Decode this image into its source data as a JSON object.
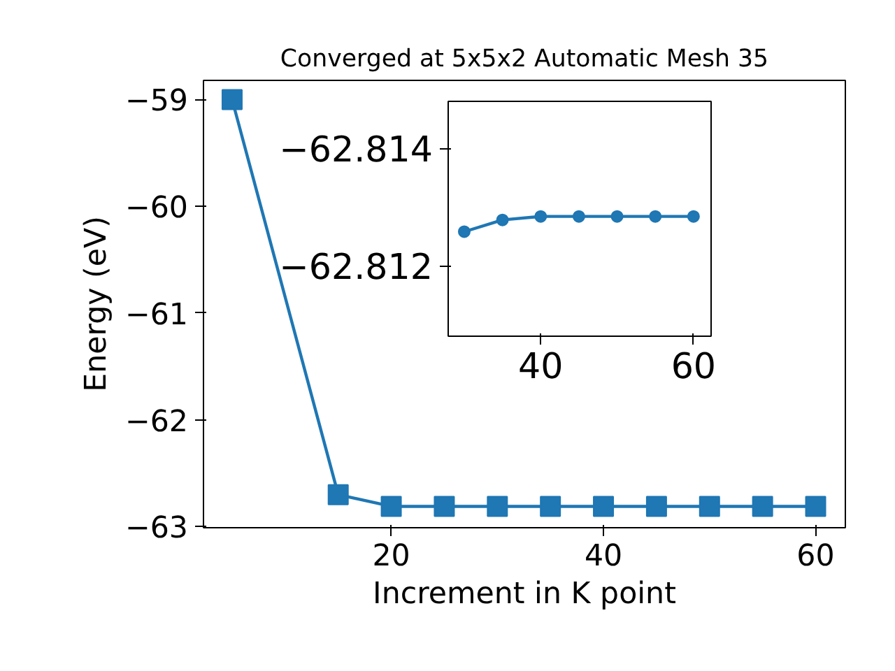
{
  "chart_data": [
    {
      "type": "line",
      "title": "Converged at 5x5x2 Automatic Mesh 35",
      "xlabel": "Increment in K point",
      "ylabel": "Energy (eV)",
      "x": [
        5,
        15,
        20,
        25,
        30,
        35,
        40,
        45,
        50,
        55,
        60
      ],
      "series": [
        {
          "color": "#1f77b4",
          "values": [
            -59.0,
            -62.7,
            -62.81,
            -62.81,
            -62.81,
            -62.81,
            -62.81,
            -62.81,
            -62.81,
            -62.81,
            -62.81
          ]
        }
      ],
      "marker": "square",
      "line_style": "solid",
      "xlim": [
        2.3,
        62.8
      ],
      "ylim": [
        -63.01,
        -58.82
      ],
      "xticks": [
        20,
        40,
        60
      ],
      "yticks": [
        -63,
        -62,
        -61,
        -60,
        -59
      ],
      "grid": false
    },
    {
      "type": "line",
      "x": [
        30,
        35,
        40,
        45,
        50,
        55,
        60
      ],
      "series": [
        {
          "color": "#1f77b4",
          "values": [
            -62.81258,
            -62.81278,
            -62.81284,
            -62.81284,
            -62.81284,
            -62.81284,
            -62.81284
          ]
        }
      ],
      "marker": "circle",
      "line_style": "solid",
      "xlim": [
        27.9,
        62.3
      ],
      "ylim": [
        -62.8108,
        -62.8148
      ],
      "xticks": [
        40,
        60
      ],
      "yticks": [
        -62.814,
        -62.812
      ],
      "grid": false
    }
  ]
}
